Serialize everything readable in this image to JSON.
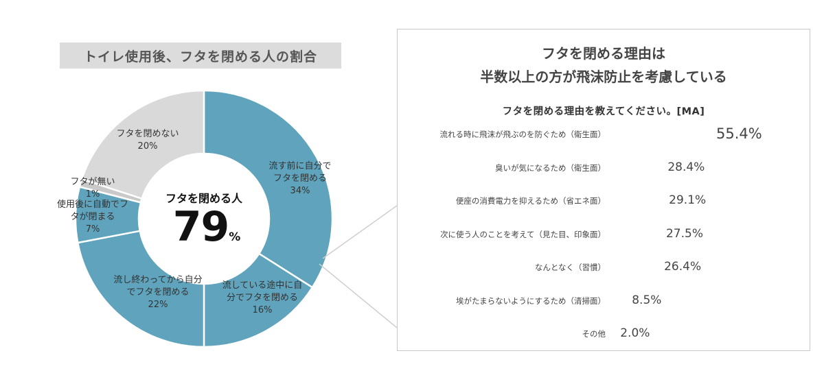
{
  "left_title": "トイレ使用後、フタを閉める人の割合",
  "donut": {
    "center_caption": "フタを閉める人",
    "center_value": "79",
    "center_unit": "%",
    "segments": [
      {
        "lines": [
          "流す前に自分で",
          "フタを閉める",
          "34%"
        ],
        "value": 34,
        "color": "#5fa3bc"
      },
      {
        "lines": [
          "流している途中に自",
          "分でフタを閉める",
          "16%"
        ],
        "value": 16,
        "color": "#5fa3bc"
      },
      {
        "lines": [
          "流し終わってから自分",
          "でフタを閉める",
          "22%"
        ],
        "value": 22,
        "color": "#5fa3bc"
      },
      {
        "lines": [
          "使用後に自動でフ",
          "タが閉まる",
          "7%"
        ],
        "value": 7,
        "color": "#5fa3bc"
      },
      {
        "lines": [
          "フタが無い",
          "1%"
        ],
        "value": 1,
        "color": "#c9c9c9"
      },
      {
        "lines": [
          "フタを閉めない",
          "20%"
        ],
        "value": 20,
        "color": "#d9d9d9"
      }
    ]
  },
  "right_panel": {
    "title_lines": [
      "フタを閉める理由は",
      "半数以上の方が飛沫防止を考慮している"
    ],
    "subtitle": "フタを閉める理由を教えてください。[MA]",
    "bar_color": "#5fa3bc",
    "highlight_color": "#f2e03a"
  },
  "chart_data": {
    "type": "bar",
    "orientation": "horizontal",
    "title": "フタを閉める理由を教えてください。[MA]",
    "categories": [
      "流れる時に飛沫が飛ぶのを防ぐため（衛生面）",
      "臭いが気になるため（衛生面）",
      "便座の消費電力を抑えるため（省エネ面）",
      "次に使う人のことを考えて（見た目、印象面）",
      "なんとなく（習慣）",
      "埃がたまらないようにするため（清掃面）",
      "その他"
    ],
    "values": [
      55.4,
      28.4,
      29.1,
      27.5,
      26.4,
      8.5,
      2.0
    ],
    "value_labels": [
      "55.4%",
      "28.4%",
      "29.1%",
      "27.5%",
      "26.4%",
      "8.5%",
      "2.0%"
    ]
  }
}
